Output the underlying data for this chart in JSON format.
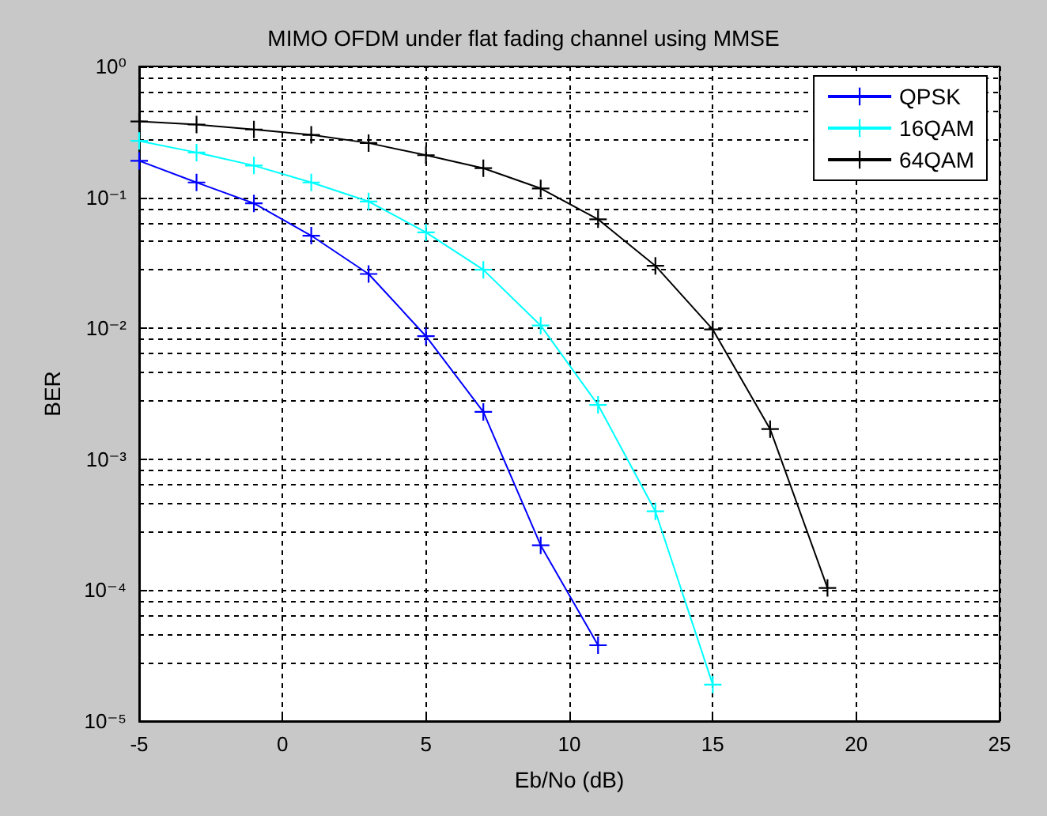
{
  "chart_data": {
    "type": "line",
    "title": "MIMO OFDM under flat fading channel using MMSE",
    "xlabel": "Eb/No (dB)",
    "ylabel": "BER",
    "xlim": [
      -5,
      25
    ],
    "xticks": [
      -5,
      0,
      5,
      10,
      15,
      20,
      25
    ],
    "ylim": [
      1e-05,
      1
    ],
    "yticks": [
      {
        "value": 1e-05,
        "label": "10⁻⁵"
      },
      {
        "value": 0.0001,
        "label": "10⁻⁴"
      },
      {
        "value": 0.001,
        "label": "10⁻³"
      },
      {
        "value": 0.01,
        "label": "10⁻²"
      },
      {
        "value": 0.1,
        "label": "10⁻¹"
      },
      {
        "value": 1,
        "label": "10⁰"
      }
    ],
    "log": "y",
    "grid": true,
    "legend": "top right",
    "marker": "cross",
    "line_style": "solid",
    "series": [
      {
        "name": "QPSK",
        "color": "#0000ff",
        "x": [
          -5,
          -3,
          -1,
          1,
          3,
          5,
          7,
          9,
          11
        ],
        "values": [
          0.19,
          0.13,
          0.09,
          0.051,
          0.026,
          0.0087,
          0.0023,
          0.00022,
          3.8e-05
        ]
      },
      {
        "name": "16QAM",
        "color": "#00ffff",
        "x": [
          -5,
          -3,
          -1,
          1,
          3,
          5,
          7,
          9,
          11,
          13,
          15
        ],
        "values": [
          0.27,
          0.22,
          0.175,
          0.13,
          0.093,
          0.054,
          0.028,
          0.0105,
          0.0026,
          0.0004,
          1.9e-05
        ]
      },
      {
        "name": "64QAM",
        "color": "#000000",
        "x": [
          -5,
          -3,
          -1,
          1,
          3,
          5,
          7,
          9,
          11,
          13,
          15,
          17,
          19
        ],
        "values": [
          0.38,
          0.36,
          0.33,
          0.3,
          0.26,
          0.21,
          0.167,
          0.117,
          0.068,
          0.03,
          0.0098,
          0.0017,
          0.000104
        ]
      }
    ]
  }
}
